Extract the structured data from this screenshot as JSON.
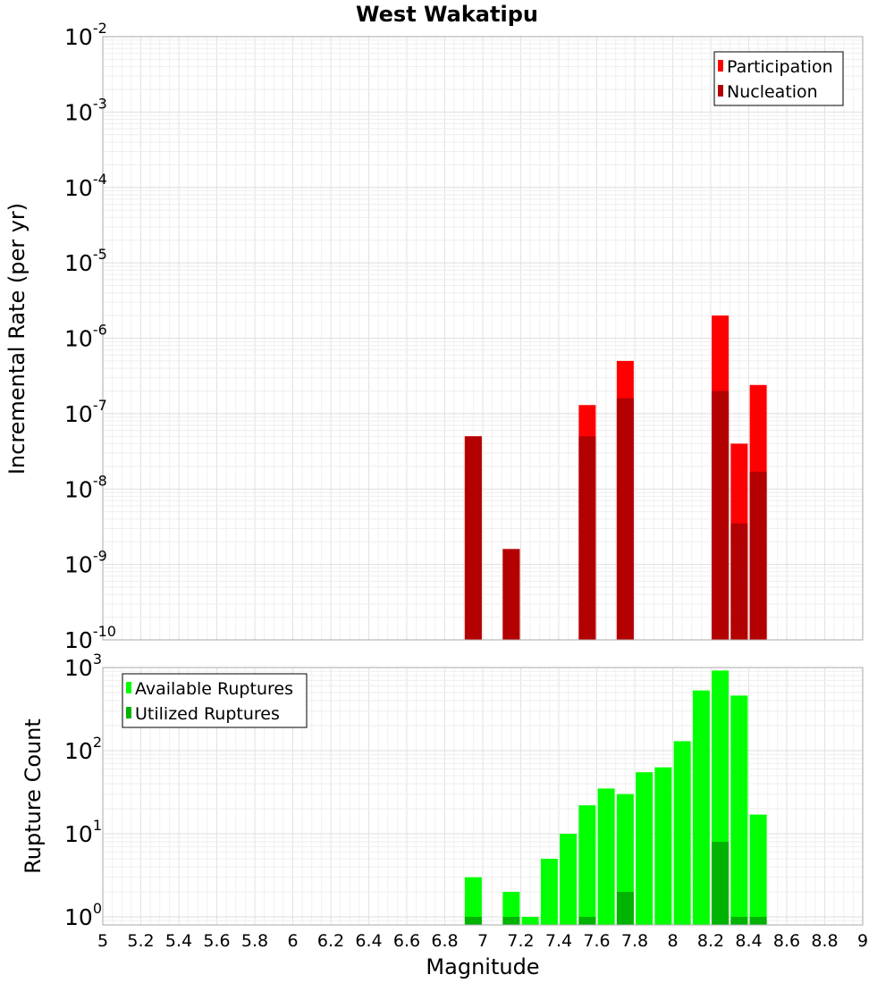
{
  "chart_data": [
    {
      "type": "bar",
      "title": "West Wakatipu",
      "xlabel": "",
      "ylabel": "Incremental Rate (per yr)",
      "yscale": "log",
      "ylim": [
        1e-10,
        0.01
      ],
      "xlim": [
        5,
        9
      ],
      "grid": true,
      "legend_placement": "top-right",
      "series": [
        {
          "name": "Participation",
          "color": "#ff0000",
          "points": [
            {
              "x": 6.95,
              "y": 5e-08
            },
            {
              "x": 7.15,
              "y": 1.6e-09
            },
            {
              "x": 7.55,
              "y": 1.3e-07
            },
            {
              "x": 7.75,
              "y": 5e-07
            },
            {
              "x": 8.25,
              "y": 2e-06
            },
            {
              "x": 8.35,
              "y": 4e-08
            },
            {
              "x": 8.45,
              "y": 2.4e-07
            }
          ]
        },
        {
          "name": "Nucleation",
          "color": "#b30000",
          "points": [
            {
              "x": 6.95,
              "y": 5e-08
            },
            {
              "x": 7.15,
              "y": 1.6e-09
            },
            {
              "x": 7.55,
              "y": 5e-08
            },
            {
              "x": 7.75,
              "y": 1.6e-07
            },
            {
              "x": 8.25,
              "y": 2e-07
            },
            {
              "x": 8.35,
              "y": 3.5e-09
            },
            {
              "x": 8.45,
              "y": 1.7e-08
            }
          ]
        }
      ]
    },
    {
      "type": "bar",
      "xlabel": "Magnitude",
      "ylabel": "Rupture Count",
      "yscale": "log",
      "ylim": [
        0.8,
        1000
      ],
      "xlim": [
        5,
        9
      ],
      "grid": true,
      "legend_placement": "top-left",
      "series": [
        {
          "name": "Available Ruptures",
          "color": "#00ff00",
          "points": [
            {
              "x": 6.95,
              "y": 3
            },
            {
              "x": 7.15,
              "y": 2
            },
            {
              "x": 7.25,
              "y": 1
            },
            {
              "x": 7.35,
              "y": 5
            },
            {
              "x": 7.45,
              "y": 10
            },
            {
              "x": 7.55,
              "y": 22
            },
            {
              "x": 7.65,
              "y": 35
            },
            {
              "x": 7.75,
              "y": 30
            },
            {
              "x": 7.85,
              "y": 55
            },
            {
              "x": 7.95,
              "y": 63
            },
            {
              "x": 8.05,
              "y": 130
            },
            {
              "x": 8.15,
              "y": 530
            },
            {
              "x": 8.25,
              "y": 920
            },
            {
              "x": 8.35,
              "y": 460
            },
            {
              "x": 8.45,
              "y": 17
            }
          ]
        },
        {
          "name": "Utilized Ruptures",
          "color": "#00b300",
          "points": [
            {
              "x": 6.95,
              "y": 1
            },
            {
              "x": 7.15,
              "y": 1
            },
            {
              "x": 7.55,
              "y": 1
            },
            {
              "x": 7.75,
              "y": 2
            },
            {
              "x": 8.25,
              "y": 8
            },
            {
              "x": 8.35,
              "y": 1
            },
            {
              "x": 8.45,
              "y": 1
            }
          ]
        }
      ]
    }
  ],
  "x_ticks": [
    "5",
    "5.2",
    "5.4",
    "5.6",
    "5.8",
    "6",
    "6.2",
    "6.4",
    "6.6",
    "6.8",
    "7",
    "7.2",
    "7.4",
    "7.6",
    "7.8",
    "8",
    "8.2",
    "8.4",
    "8.6",
    "8.8",
    "9"
  ],
  "top_y_ticks": [
    {
      "base": "10",
      "exp": "-2"
    },
    {
      "base": "10",
      "exp": "-3"
    },
    {
      "base": "10",
      "exp": "-4"
    },
    {
      "base": "10",
      "exp": "-5"
    },
    {
      "base": "10",
      "exp": "-6"
    },
    {
      "base": "10",
      "exp": "-7"
    },
    {
      "base": "10",
      "exp": "-8"
    },
    {
      "base": "10",
      "exp": "-9"
    },
    {
      "base": "10",
      "exp": "-10"
    }
  ],
  "bottom_y_ticks": [
    {
      "base": "10",
      "exp": "3"
    },
    {
      "base": "10",
      "exp": "2"
    },
    {
      "base": "10",
      "exp": "1"
    },
    {
      "base": "10",
      "exp": "0"
    }
  ]
}
